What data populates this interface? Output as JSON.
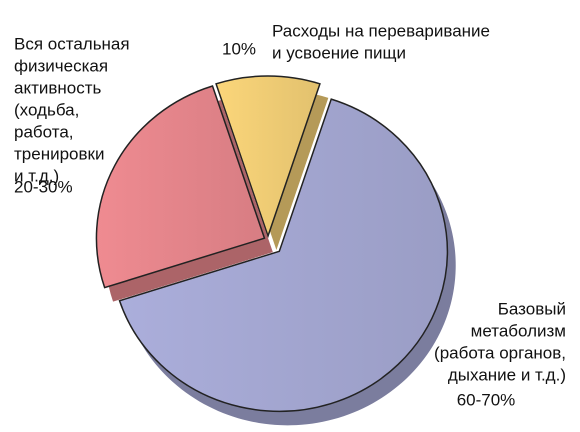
{
  "chart_data": {
    "type": "pie",
    "categories": [
      [
        "Расходы на переваривание",
        "и усвоение пищи"
      ],
      [
        "Базовый",
        "метаболизм",
        "(работа органов,",
        "дыхание и т.д.)"
      ],
      [
        "Вся остальная",
        "физическая",
        "активность",
        "(ходьба,",
        "работа,",
        "тренировки",
        "и т.д.)"
      ]
    ],
    "values": [
      10,
      65,
      25
    ],
    "value_labels": [
      "10%",
      "60-70%",
      "20-30%"
    ],
    "colors": [
      "#fbd67a",
      "#abaedb",
      "#ef8b91"
    ]
  }
}
